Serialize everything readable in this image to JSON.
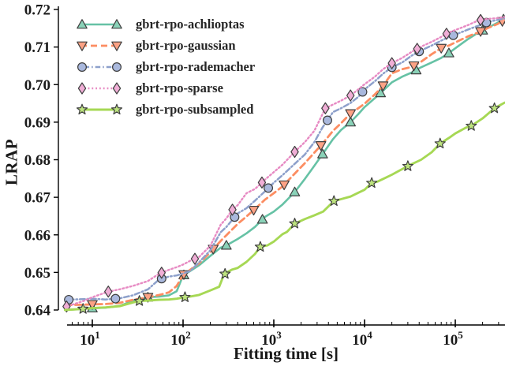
{
  "figure": {
    "background": "#ffffff",
    "text_color": "#1a1a1a",
    "axis_color": "#000000",
    "marker_edge_color": "#3f3f3f"
  },
  "chart_data": {
    "type": "line",
    "title": "",
    "xlabel": "Fitting time [s]",
    "ylabel": "LRAP",
    "x_scale": "log",
    "xlim": [
      5,
      350000
    ],
    "ylim": [
      0.638,
      0.721
    ],
    "grid": false,
    "legend_position": "upper-left",
    "yticks": [
      {
        "value": 0.64,
        "label": "0.64"
      },
      {
        "value": 0.65,
        "label": "0.65"
      },
      {
        "value": 0.66,
        "label": "0.66"
      },
      {
        "value": 0.67,
        "label": "0.67"
      },
      {
        "value": 0.68,
        "label": "0.68"
      },
      {
        "value": 0.69,
        "label": "0.69"
      },
      {
        "value": 0.7,
        "label": "0.70"
      },
      {
        "value": 0.71,
        "label": "0.71"
      },
      {
        "value": 0.72,
        "label": "0.72"
      }
    ],
    "xticks": [
      {
        "t": 10,
        "base": "10",
        "exp": "1"
      },
      {
        "t": 100,
        "base": "10",
        "exp": "2"
      },
      {
        "t": 1000,
        "base": "10",
        "exp": "3"
      },
      {
        "t": 10000,
        "base": "10",
        "exp": "4"
      },
      {
        "t": 100000,
        "base": "10",
        "exp": "5"
      }
    ],
    "series": [
      {
        "name": "gbrt-rpo-achlioptas",
        "color": "#66c2a5",
        "marker_fill": "#8ad2b8",
        "line_style": "solid",
        "line_width": 2.6,
        "marker": "triangle-up",
        "points": [
          [
            5,
            0.64
          ],
          [
            8,
            0.6403
          ],
          [
            10,
            0.6405
          ],
          [
            14,
            0.6406
          ],
          [
            20,
            0.6411
          ],
          [
            28,
            0.6424
          ],
          [
            41,
            0.6434
          ],
          [
            55,
            0.6436
          ],
          [
            70,
            0.6439
          ],
          [
            85,
            0.645
          ],
          [
            100,
            0.6492
          ],
          [
            120,
            0.6504
          ],
          [
            150,
            0.6519
          ],
          [
            200,
            0.6544
          ],
          [
            260,
            0.6566
          ],
          [
            300,
            0.6572
          ],
          [
            400,
            0.6589
          ],
          [
            500,
            0.6604
          ],
          [
            620,
            0.6621
          ],
          [
            800,
            0.6648
          ],
          [
            1000,
            0.6662
          ],
          [
            1250,
            0.6681
          ],
          [
            1700,
            0.6714
          ],
          [
            2200,
            0.6749
          ],
          [
            2800,
            0.6784
          ],
          [
            3450,
            0.6815
          ],
          [
            4500,
            0.6855
          ],
          [
            5500,
            0.6879
          ],
          [
            7000,
            0.69
          ],
          [
            8500,
            0.6921
          ],
          [
            10000,
            0.694
          ],
          [
            13000,
            0.6964
          ],
          [
            16000,
            0.6984
          ],
          [
            20000,
            0.7006
          ],
          [
            26000,
            0.7021
          ],
          [
            33000,
            0.7032
          ],
          [
            42000,
            0.7046
          ],
          [
            55000,
            0.7059
          ],
          [
            70000,
            0.7071
          ],
          [
            85000,
            0.7084
          ],
          [
            110000,
            0.7104
          ],
          [
            140000,
            0.7122
          ],
          [
            180000,
            0.7139
          ],
          [
            230000,
            0.7152
          ],
          [
            290000,
            0.7164
          ],
          [
            350000,
            0.7176
          ]
        ],
        "marker_t": [
          10,
          41,
          102,
          300,
          750,
          1700,
          3450,
          7000,
          15000,
          37000,
          85000,
          200000,
          340000
        ]
      },
      {
        "name": "gbrt-rpo-gaussian",
        "color": "#fc8d62",
        "marker_fill": "#fda285",
        "line_style": "dashed",
        "line_width": 2.8,
        "marker": "triangle-down",
        "points": [
          [
            5,
            0.6413
          ],
          [
            8,
            0.6414
          ],
          [
            10,
            0.6415
          ],
          [
            14,
            0.6416
          ],
          [
            20,
            0.6419
          ],
          [
            28,
            0.6427
          ],
          [
            41,
            0.6434
          ],
          [
            55,
            0.644
          ],
          [
            70,
            0.6447
          ],
          [
            85,
            0.6464
          ],
          [
            100,
            0.6493
          ],
          [
            120,
            0.6507
          ],
          [
            150,
            0.6524
          ],
          [
            200,
            0.6554
          ],
          [
            260,
            0.6584
          ],
          [
            300,
            0.6599
          ],
          [
            400,
            0.6629
          ],
          [
            500,
            0.6649
          ],
          [
            620,
            0.6669
          ],
          [
            800,
            0.6694
          ],
          [
            1000,
            0.6711
          ],
          [
            1250,
            0.6729
          ],
          [
            1700,
            0.6763
          ],
          [
            2200,
            0.6791
          ],
          [
            2800,
            0.6819
          ],
          [
            3450,
            0.6843
          ],
          [
            4500,
            0.6877
          ],
          [
            5500,
            0.6897
          ],
          [
            7000,
            0.6923
          ],
          [
            8500,
            0.6937
          ],
          [
            10000,
            0.6949
          ],
          [
            13000,
            0.6974
          ],
          [
            16000,
            0.6997
          ],
          [
            20000,
            0.703
          ],
          [
            26000,
            0.7041
          ],
          [
            33000,
            0.7047
          ],
          [
            42000,
            0.7061
          ],
          [
            55000,
            0.7081
          ],
          [
            70000,
            0.7097
          ],
          [
            85000,
            0.7104
          ],
          [
            110000,
            0.7117
          ],
          [
            140000,
            0.7129
          ],
          [
            180000,
            0.7139
          ],
          [
            230000,
            0.7151
          ],
          [
            290000,
            0.7161
          ],
          [
            350000,
            0.7172
          ]
        ],
        "marker_t": [
          10,
          41,
          102,
          215,
          600,
          1300,
          3300,
          7000,
          16000,
          35000,
          70000,
          190000,
          330000
        ]
      },
      {
        "name": "gbrt-rpo-rademacher",
        "color": "#8da0cb",
        "marker_fill": "#a9b8dd",
        "line_style": "dashdot",
        "line_width": 2.5,
        "marker": "circle",
        "points": [
          [
            5,
            0.6427
          ],
          [
            8,
            0.6429
          ],
          [
            10,
            0.643
          ],
          [
            14,
            0.6428
          ],
          [
            20,
            0.6431
          ],
          [
            28,
            0.6439
          ],
          [
            41,
            0.6455
          ],
          [
            55,
            0.6482
          ],
          [
            70,
            0.6489
          ],
          [
            85,
            0.6492
          ],
          [
            100,
            0.6497
          ],
          [
            120,
            0.6504
          ],
          [
            150,
            0.6527
          ],
          [
            200,
            0.6559
          ],
          [
            260,
            0.6607
          ],
          [
            300,
            0.6621
          ],
          [
            400,
            0.6657
          ],
          [
            500,
            0.6671
          ],
          [
            620,
            0.6691
          ],
          [
            800,
            0.6716
          ],
          [
            1000,
            0.6739
          ],
          [
            1250,
            0.6759
          ],
          [
            1700,
            0.6789
          ],
          [
            2200,
            0.6814
          ],
          [
            2800,
            0.6847
          ],
          [
            3450,
            0.6886
          ],
          [
            4500,
            0.6927
          ],
          [
            5500,
            0.6937
          ],
          [
            7000,
            0.6951
          ],
          [
            8500,
            0.6967
          ],
          [
            10000,
            0.6987
          ],
          [
            13000,
            0.7009
          ],
          [
            16000,
            0.7029
          ],
          [
            20000,
            0.7046
          ],
          [
            26000,
            0.7059
          ],
          [
            33000,
            0.7077
          ],
          [
            42000,
            0.7091
          ],
          [
            55000,
            0.7104
          ],
          [
            70000,
            0.7117
          ],
          [
            85000,
            0.7127
          ],
          [
            110000,
            0.7137
          ],
          [
            140000,
            0.7147
          ],
          [
            180000,
            0.7157
          ],
          [
            230000,
            0.7167
          ],
          [
            290000,
            0.7172
          ],
          [
            350000,
            0.7176
          ]
        ],
        "marker_t": [
          5.5,
          18,
          58,
          370,
          870,
          3900,
          9500,
          20000,
          40000,
          95000,
          220000
        ]
      },
      {
        "name": "gbrt-rpo-sparse",
        "color": "#e78ac3",
        "marker_fill": "#f0aed6",
        "line_style": "dotted",
        "line_width": 2.4,
        "marker": "diamond",
        "points": [
          [
            5,
            0.6408
          ],
          [
            8,
            0.6424
          ],
          [
            10,
            0.6434
          ],
          [
            15,
            0.6449
          ],
          [
            20,
            0.6455
          ],
          [
            28,
            0.6464
          ],
          [
            41,
            0.6477
          ],
          [
            55,
            0.6497
          ],
          [
            70,
            0.6507
          ],
          [
            85,
            0.6514
          ],
          [
            100,
            0.6521
          ],
          [
            120,
            0.6531
          ],
          [
            150,
            0.6541
          ],
          [
            200,
            0.6571
          ],
          [
            260,
            0.6627
          ],
          [
            300,
            0.6644
          ],
          [
            350,
            0.6667
          ],
          [
            400,
            0.6679
          ],
          [
            500,
            0.6711
          ],
          [
            620,
            0.6722
          ],
          [
            800,
            0.6747
          ],
          [
            1000,
            0.6767
          ],
          [
            1250,
            0.6787
          ],
          [
            1700,
            0.6821
          ],
          [
            2200,
            0.6847
          ],
          [
            2800,
            0.6877
          ],
          [
            3700,
            0.6937
          ],
          [
            4500,
            0.6947
          ],
          [
            5500,
            0.6957
          ],
          [
            7000,
            0.6971
          ],
          [
            8500,
            0.6987
          ],
          [
            10000,
            0.7001
          ],
          [
            13000,
            0.7021
          ],
          [
            16000,
            0.7041
          ],
          [
            20000,
            0.7057
          ],
          [
            26000,
            0.7071
          ],
          [
            33000,
            0.7087
          ],
          [
            42000,
            0.7101
          ],
          [
            55000,
            0.7114
          ],
          [
            70000,
            0.7127
          ],
          [
            85000,
            0.7139
          ],
          [
            110000,
            0.7149
          ],
          [
            140000,
            0.7159
          ],
          [
            180000,
            0.7171
          ],
          [
            230000,
            0.7175
          ],
          [
            290000,
            0.7177
          ],
          [
            350000,
            0.718
          ]
        ],
        "marker_t": [
          5.2,
          15,
          58,
          135,
          350,
          740,
          1700,
          3700,
          7000,
          20000,
          38000,
          80000,
          190000
        ]
      },
      {
        "name": "gbrt-rpo-subsampled",
        "color": "#a6d854",
        "marker_fill": "#bde47e",
        "line_style": "solid",
        "line_width": 2.9,
        "marker": "star",
        "points": [
          [
            5,
            0.64
          ],
          [
            8,
            0.6403
          ],
          [
            10,
            0.6405
          ],
          [
            14,
            0.6407
          ],
          [
            20,
            0.641
          ],
          [
            28,
            0.642
          ],
          [
            33,
            0.6424
          ],
          [
            41,
            0.6425
          ],
          [
            55,
            0.6427
          ],
          [
            70,
            0.6428
          ],
          [
            85,
            0.643
          ],
          [
            105,
            0.6434
          ],
          [
            120,
            0.6436
          ],
          [
            150,
            0.644
          ],
          [
            200,
            0.6452
          ],
          [
            250,
            0.6462
          ],
          [
            280,
            0.6492
          ],
          [
            300,
            0.65
          ],
          [
            350,
            0.6508
          ],
          [
            400,
            0.6512
          ],
          [
            500,
            0.6528
          ],
          [
            620,
            0.6549
          ],
          [
            710,
            0.6568
          ],
          [
            850,
            0.6572
          ],
          [
            1000,
            0.6582
          ],
          [
            1250,
            0.6602
          ],
          [
            1400,
            0.6608
          ],
          [
            1700,
            0.663
          ],
          [
            2200,
            0.6642
          ],
          [
            2800,
            0.6652
          ],
          [
            3500,
            0.6662
          ],
          [
            4600,
            0.669
          ],
          [
            5500,
            0.6695
          ],
          [
            7000,
            0.6702
          ],
          [
            8500,
            0.6712
          ],
          [
            10000,
            0.672
          ],
          [
            12000,
            0.6738
          ],
          [
            14000,
            0.6742
          ],
          [
            17000,
            0.6752
          ],
          [
            20000,
            0.676
          ],
          [
            26000,
            0.6775
          ],
          [
            33000,
            0.6788
          ],
          [
            42000,
            0.68
          ],
          [
            55000,
            0.682
          ],
          [
            68000,
            0.6843
          ],
          [
            85000,
            0.6858
          ],
          [
            100000,
            0.687
          ],
          [
            130000,
            0.6885
          ],
          [
            150000,
            0.689
          ],
          [
            200000,
            0.691
          ],
          [
            270000,
            0.6937
          ],
          [
            350000,
            0.6952
          ]
        ],
        "marker_t": [
          7.9,
          33,
          105,
          290,
          710,
          1700,
          4600,
          12000,
          30000,
          68000,
          150000,
          270000
        ]
      }
    ]
  }
}
